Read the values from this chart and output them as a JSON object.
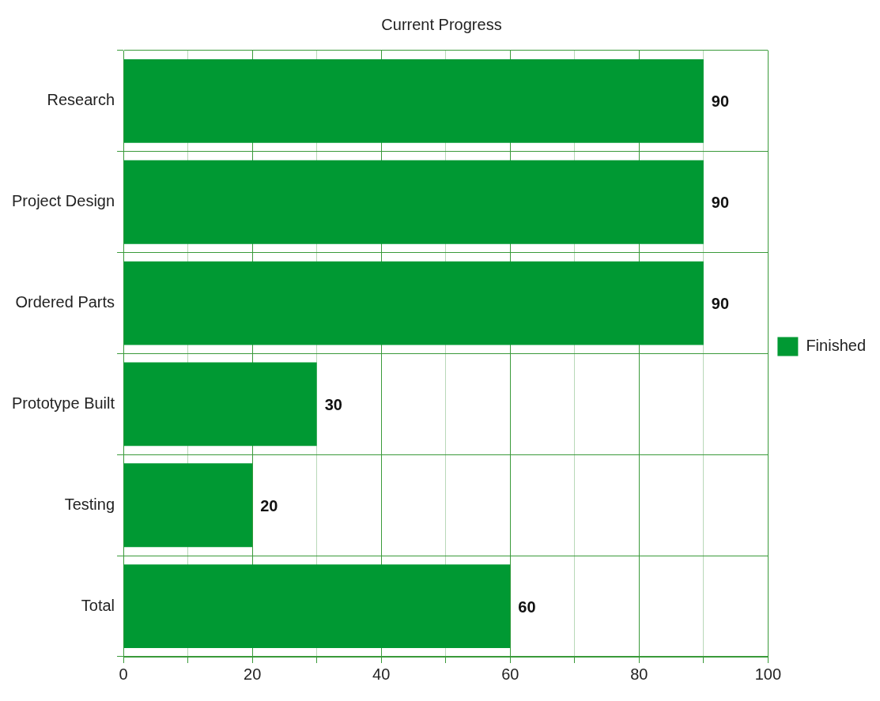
{
  "chart_data": {
    "type": "bar",
    "orientation": "horizontal",
    "title": "Current Progress",
    "categories": [
      "Research",
      "Project Design",
      "Ordered Parts",
      "Prototype Built",
      "Testing",
      "Total"
    ],
    "series": [
      {
        "name": "Finished",
        "color": "#009933",
        "values": [
          90,
          90,
          90,
          30,
          20,
          60
        ]
      }
    ],
    "xlim": [
      0,
      100
    ],
    "xticks": [
      0,
      {
        "value": 10,
        "label": null
      },
      20,
      {
        "value": 30,
        "label": null
      },
      40,
      {
        "value": 50,
        "label": null
      },
      60,
      {
        "value": 70,
        "label": null
      },
      80,
      {
        "value": 90,
        "label": null
      },
      100
    ],
    "grid": true,
    "legend": "right",
    "data_labels": true
  }
}
